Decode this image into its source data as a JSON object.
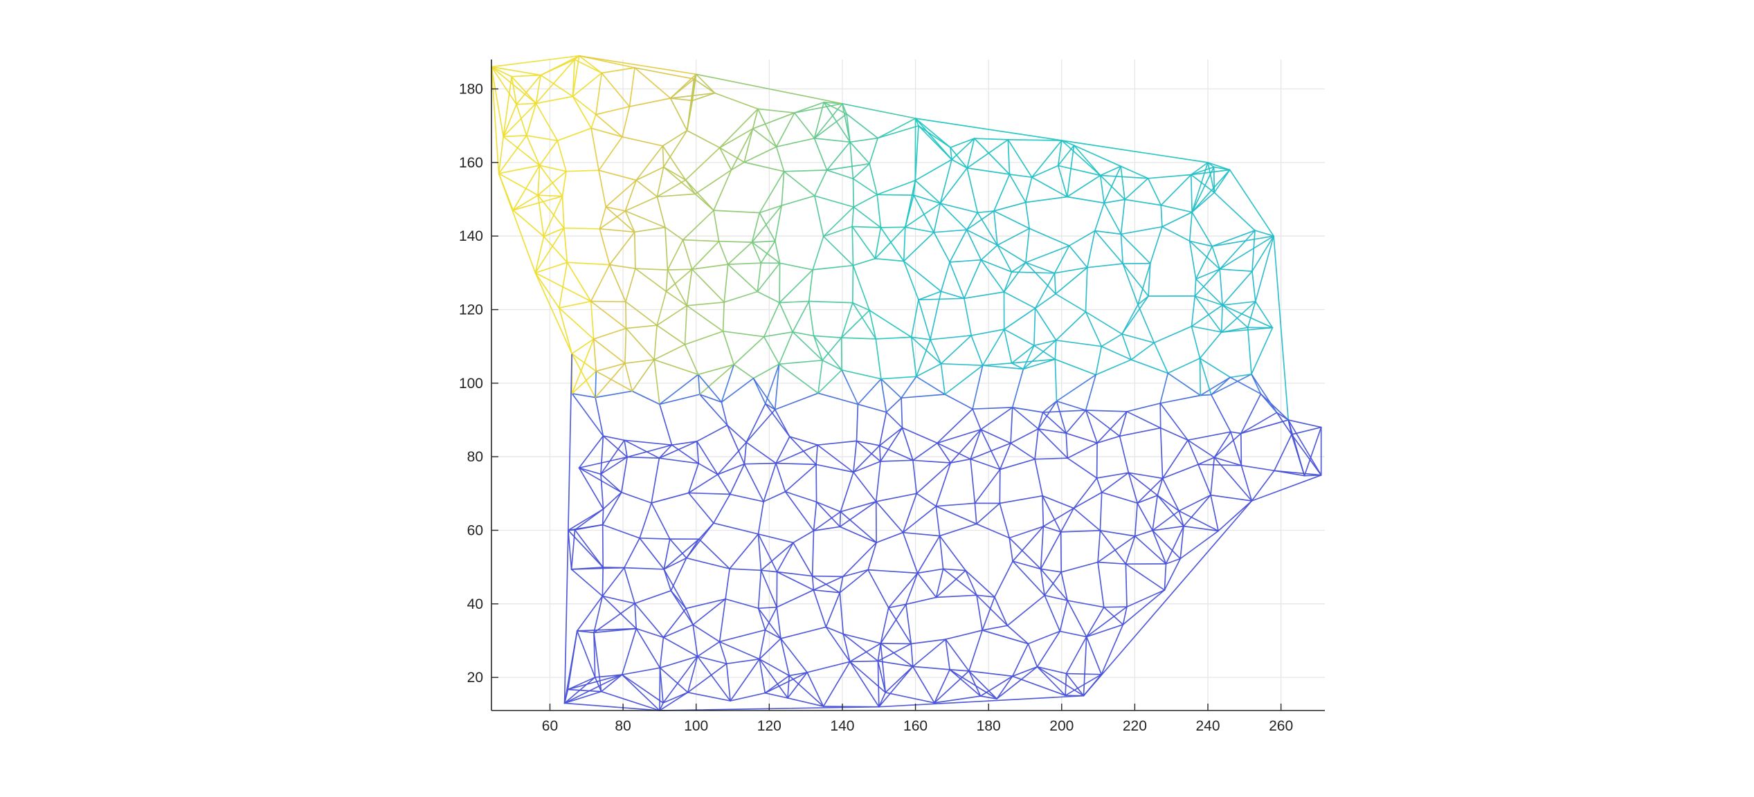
{
  "chart_data": {
    "type": "mesh",
    "title": "",
    "xlabel": "",
    "ylabel": "",
    "xlim": [
      44,
      272
    ],
    "ylim": [
      11,
      188
    ],
    "xticks": [
      60,
      80,
      100,
      120,
      140,
      160,
      180,
      200,
      220,
      240,
      260
    ],
    "yticks": [
      20,
      40,
      60,
      80,
      100,
      120,
      140,
      160,
      180
    ],
    "grid": true,
    "colormap": "parula",
    "color_stops": [
      "#4b3fd6",
      "#3f9ce0",
      "#1fc6c2",
      "#7ec97a",
      "#e0c548",
      "#f2e42a"
    ],
    "boundary": [
      [
        44,
        186
      ],
      [
        68,
        189
      ],
      [
        100,
        184
      ],
      [
        140,
        176
      ],
      [
        160,
        172
      ],
      [
        200,
        166
      ],
      [
        240,
        160
      ],
      [
        246,
        158
      ],
      [
        258,
        140
      ],
      [
        262,
        90
      ],
      [
        271,
        88
      ],
      [
        271,
        75
      ],
      [
        252,
        68
      ],
      [
        206,
        15
      ],
      [
        150,
        12
      ],
      [
        90,
        11
      ],
      [
        64,
        13
      ],
      [
        65,
        60
      ],
      [
        66,
        108
      ],
      [
        56,
        130
      ],
      [
        46,
        157
      ],
      [
        44,
        186
      ]
    ],
    "regions": [
      {
        "name": "upper-left",
        "x": [
          44,
          140
        ],
        "y": [
          110,
          188
        ],
        "level": 0.92
      },
      {
        "name": "upper-right",
        "x": [
          140,
          258
        ],
        "y": [
          100,
          175
        ],
        "level": 0.5
      },
      {
        "name": "lower",
        "x": [
          64,
          271
        ],
        "y": [
          11,
          100
        ],
        "level": 0.05
      }
    ]
  }
}
